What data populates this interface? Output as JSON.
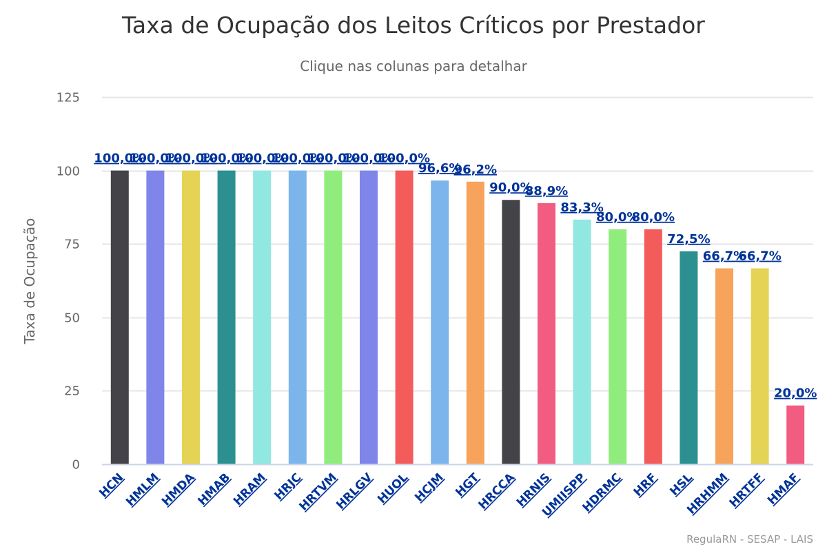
{
  "chart_data": {
    "type": "bar",
    "title": "Taxa de Ocupação dos Leitos Críticos por Prestador",
    "subtitle": "Clique nas colunas para detalhar",
    "xlabel": "",
    "ylabel": "Taxa de Ocupação",
    "ylim": [
      0,
      125
    ],
    "yticks": [
      "0",
      "25",
      "50",
      "75",
      "100",
      "125"
    ],
    "grid": true,
    "categories": [
      "HCN",
      "HMLM",
      "HMDA",
      "HMAB",
      "HRAM",
      "HRJC",
      "HRTVM",
      "HRLGV",
      "HUOL",
      "HCJM",
      "HGT",
      "HRCCA",
      "HRNIS",
      "UMIISPP",
      "HDRMC",
      "HRF",
      "HSL",
      "HRHMM",
      "HRTFF",
      "HMAF"
    ],
    "values": [
      100.0,
      100.0,
      100.0,
      100.0,
      100.0,
      100.0,
      100.0,
      100.0,
      100.0,
      96.6,
      96.2,
      90.0,
      88.9,
      83.3,
      80.0,
      80.0,
      72.5,
      66.7,
      66.7,
      20.0
    ],
    "data_labels": [
      "100,0%",
      "100,0%",
      "100,0%",
      "100,0%",
      "100,0%",
      "100,0%",
      "100,0%",
      "100,0%",
      "100,0%",
      "96,6%",
      "96,2%",
      "90,0%",
      "88,9%",
      "83,3%",
      "80,0%",
      "80,0%",
      "72,5%",
      "66,7%",
      "66,7%",
      "20,0%"
    ],
    "colors": [
      "#434348",
      "#8085e9",
      "#e4d354",
      "#2b908f",
      "#91e8e1",
      "#7cb5ec",
      "#90ed7d",
      "#8085e9",
      "#f45b5b",
      "#7cb5ec",
      "#f7a35c",
      "#434348",
      "#f15c80",
      "#91e8e1",
      "#90ed7d",
      "#f45b5b",
      "#2b908f",
      "#f7a35c",
      "#e4d354",
      "#f15c80"
    ],
    "credits": "RegulaRN - SESAP - LAIS"
  }
}
